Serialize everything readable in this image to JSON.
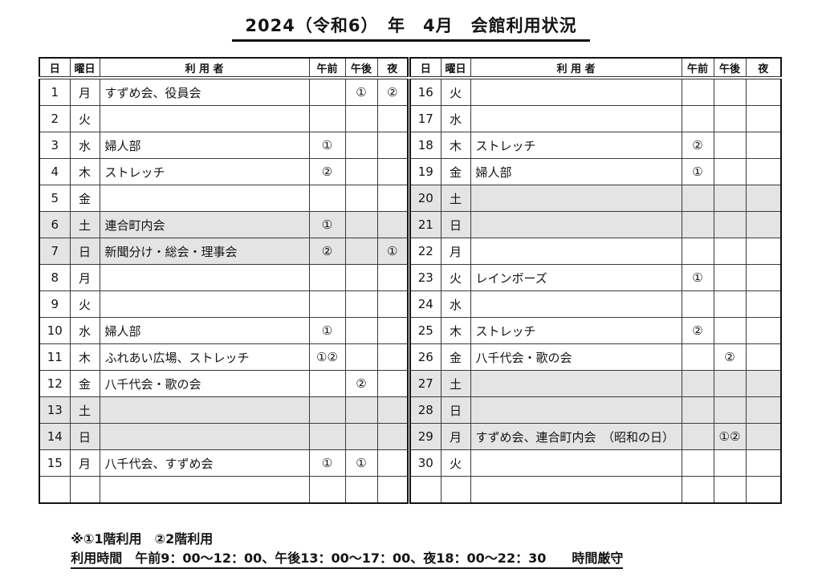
{
  "title": "2024（令和6）　年　4月　会館利用状況",
  "table": {
    "headers": {
      "day": "日",
      "weekday": "曜日",
      "user": "利 用 者",
      "morning": "午前",
      "afternoon": "午後",
      "night": "夜"
    },
    "left_rows": [
      {
        "day": "1",
        "weekday": "月",
        "user": "すずめ会、役員会",
        "morning": "",
        "afternoon": "①",
        "night": "②",
        "shaded": false
      },
      {
        "day": "2",
        "weekday": "火",
        "user": "",
        "morning": "",
        "afternoon": "",
        "night": "",
        "shaded": false
      },
      {
        "day": "3",
        "weekday": "水",
        "user": "婦人部",
        "morning": "①",
        "afternoon": "",
        "night": "",
        "shaded": false
      },
      {
        "day": "4",
        "weekday": "木",
        "user": "ストレッチ",
        "morning": "②",
        "afternoon": "",
        "night": "",
        "shaded": false
      },
      {
        "day": "5",
        "weekday": "金",
        "user": "",
        "morning": "",
        "afternoon": "",
        "night": "",
        "shaded": false
      },
      {
        "day": "6",
        "weekday": "土",
        "user": "連合町内会",
        "morning": "①",
        "afternoon": "",
        "night": "",
        "shaded": true
      },
      {
        "day": "7",
        "weekday": "日",
        "user": "新聞分け・総会・理事会",
        "morning": "②",
        "afternoon": "",
        "night": "①",
        "shaded": true
      },
      {
        "day": "8",
        "weekday": "月",
        "user": "",
        "morning": "",
        "afternoon": "",
        "night": "",
        "shaded": false
      },
      {
        "day": "9",
        "weekday": "火",
        "user": "",
        "morning": "",
        "afternoon": "",
        "night": "",
        "shaded": false
      },
      {
        "day": "10",
        "weekday": "水",
        "user": "婦人部",
        "morning": "①",
        "afternoon": "",
        "night": "",
        "shaded": false
      },
      {
        "day": "11",
        "weekday": "木",
        "user": "ふれあい広場、ストレッチ",
        "morning": "①②",
        "afternoon": "",
        "night": "",
        "shaded": false
      },
      {
        "day": "12",
        "weekday": "金",
        "user": "八千代会・歌の会",
        "morning": "",
        "afternoon": "②",
        "night": "",
        "shaded": false
      },
      {
        "day": "13",
        "weekday": "土",
        "user": "",
        "morning": "",
        "afternoon": "",
        "night": "",
        "shaded": true
      },
      {
        "day": "14",
        "weekday": "日",
        "user": "",
        "morning": "",
        "afternoon": "",
        "night": "",
        "shaded": true
      },
      {
        "day": "15",
        "weekday": "月",
        "user": "八千代会、すずめ会",
        "morning": "①",
        "afternoon": "①",
        "night": "",
        "shaded": false
      },
      {
        "day": "",
        "weekday": "",
        "user": "",
        "morning": "",
        "afternoon": "",
        "night": "",
        "shaded": false
      }
    ],
    "right_rows": [
      {
        "day": "16",
        "weekday": "火",
        "user": "",
        "morning": "",
        "afternoon": "",
        "night": "",
        "shaded": false
      },
      {
        "day": "17",
        "weekday": "水",
        "user": "",
        "morning": "",
        "afternoon": "",
        "night": "",
        "shaded": false
      },
      {
        "day": "18",
        "weekday": "木",
        "user": "ストレッチ",
        "morning": "②",
        "afternoon": "",
        "night": "",
        "shaded": false
      },
      {
        "day": "19",
        "weekday": "金",
        "user": "婦人部",
        "morning": "①",
        "afternoon": "",
        "night": "",
        "shaded": false
      },
      {
        "day": "20",
        "weekday": "土",
        "user": "",
        "morning": "",
        "afternoon": "",
        "night": "",
        "shaded": true
      },
      {
        "day": "21",
        "weekday": "日",
        "user": "",
        "morning": "",
        "afternoon": "",
        "night": "",
        "shaded": true
      },
      {
        "day": "22",
        "weekday": "月",
        "user": "",
        "morning": "",
        "afternoon": "",
        "night": "",
        "shaded": false
      },
      {
        "day": "23",
        "weekday": "火",
        "user": "レインボーズ",
        "morning": "①",
        "afternoon": "",
        "night": "",
        "shaded": false
      },
      {
        "day": "24",
        "weekday": "水",
        "user": "",
        "morning": "",
        "afternoon": "",
        "night": "",
        "shaded": false
      },
      {
        "day": "25",
        "weekday": "木",
        "user": "ストレッチ",
        "morning": "②",
        "afternoon": "",
        "night": "",
        "shaded": false
      },
      {
        "day": "26",
        "weekday": "金",
        "user": "八千代会・歌の会",
        "morning": "",
        "afternoon": "②",
        "night": "",
        "shaded": false
      },
      {
        "day": "27",
        "weekday": "土",
        "user": "",
        "morning": "",
        "afternoon": "",
        "night": "",
        "shaded": true
      },
      {
        "day": "28",
        "weekday": "日",
        "user": "",
        "morning": "",
        "afternoon": "",
        "night": "",
        "shaded": true
      },
      {
        "day": "29",
        "weekday": "月",
        "user": "すずめ会、連合町内会　（昭和の日）",
        "morning": "",
        "afternoon": "①②",
        "night": "",
        "shaded": true
      },
      {
        "day": "30",
        "weekday": "火",
        "user": "",
        "morning": "",
        "afternoon": "",
        "night": "",
        "shaded": false
      },
      {
        "day": "",
        "weekday": "",
        "user": "",
        "morning": "",
        "afternoon": "",
        "night": "",
        "shaded": false
      }
    ]
  },
  "footnote": {
    "legend": "※①1階利用　②2階利用",
    "hours": "利用時間　午前9：00～12：00、午後13：00～17：00、夜18：00～22：30　　時間厳守"
  },
  "colors": {
    "shaded_row": "#e4e4e4",
    "border": "#3a3a3a",
    "text": "#141414"
  }
}
